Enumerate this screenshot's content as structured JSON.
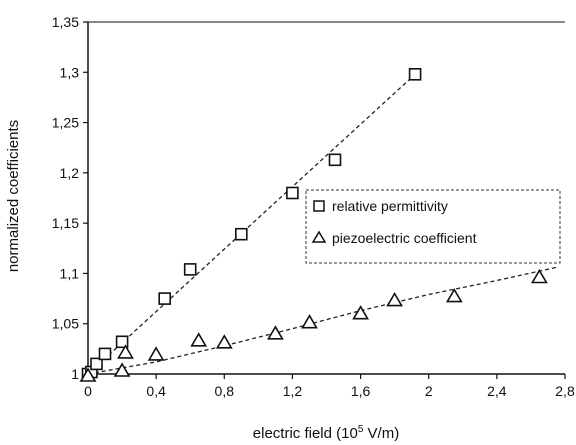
{
  "chart_data": {
    "type": "scatter",
    "xlabel": "electric field (10",
    "xlabel_exp": "5",
    "xlabel_unit": " V/m)",
    "ylabel": "normalized coefficients",
    "xlim": [
      0,
      2.8
    ],
    "ylim": [
      1,
      1.35
    ],
    "x_ticks": [
      0,
      0.4,
      0.8,
      1.2,
      1.6,
      2,
      2.4,
      2.8
    ],
    "x_tick_labels": [
      "0",
      "0,4",
      "0,8",
      "1,2",
      "1,6",
      "2",
      "2,4",
      "2,8"
    ],
    "y_ticks": [
      1,
      1.05,
      1.1,
      1.15,
      1.2,
      1.25,
      1.3,
      1.35
    ],
    "y_tick_labels": [
      "1",
      "1,05",
      "1,1",
      "1,15",
      "1,2",
      "1,25",
      "1,3",
      "1,35"
    ],
    "grid": false,
    "legend_position": "right",
    "series": [
      {
        "name": "relative permittivity",
        "marker": "square",
        "points": [
          {
            "x": 0.0,
            "y": 1.0
          },
          {
            "x": 0.02,
            "y": 1.002
          },
          {
            "x": 0.05,
            "y": 1.01
          },
          {
            "x": 0.1,
            "y": 1.02
          },
          {
            "x": 0.2,
            "y": 1.032
          },
          {
            "x": 0.45,
            "y": 1.075
          },
          {
            "x": 0.6,
            "y": 1.104
          },
          {
            "x": 0.9,
            "y": 1.139
          },
          {
            "x": 1.2,
            "y": 1.18
          },
          {
            "x": 1.45,
            "y": 1.213
          },
          {
            "x": 1.92,
            "y": 1.298
          }
        ],
        "trend": [
          [
            0.0,
            1.0
          ],
          [
            1.92,
            1.298
          ]
        ]
      },
      {
        "name": "piezoelectric coefficient",
        "marker": "triangle",
        "points": [
          {
            "x": 0.0,
            "y": 0.998
          },
          {
            "x": 0.2,
            "y": 1.003
          },
          {
            "x": 0.22,
            "y": 1.021
          },
          {
            "x": 0.4,
            "y": 1.019
          },
          {
            "x": 0.65,
            "y": 1.033
          },
          {
            "x": 0.8,
            "y": 1.031
          },
          {
            "x": 1.1,
            "y": 1.04
          },
          {
            "x": 1.3,
            "y": 1.051
          },
          {
            "x": 1.6,
            "y": 1.06
          },
          {
            "x": 1.8,
            "y": 1.073
          },
          {
            "x": 2.15,
            "y": 1.077
          },
          {
            "x": 2.65,
            "y": 1.096
          }
        ],
        "trend": [
          [
            0.0,
            1.0
          ],
          [
            0.4,
            1.012
          ],
          [
            0.8,
            1.028
          ],
          [
            1.2,
            1.045
          ],
          [
            1.6,
            1.063
          ],
          [
            2.0,
            1.079
          ],
          [
            2.4,
            1.093
          ],
          [
            2.75,
            1.106
          ]
        ]
      }
    ]
  }
}
